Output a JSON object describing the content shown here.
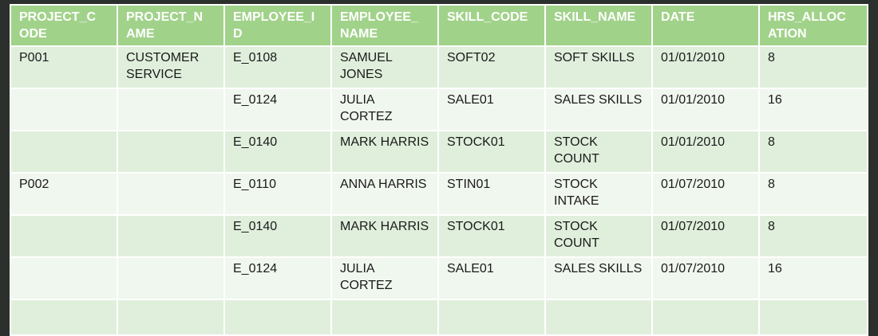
{
  "table": {
    "headers": [
      "PROJECT_C ODE",
      "PROJECT_N AME",
      "EMPLOYEE_I D",
      "EMPLOYEE_ NAME",
      "SKILL_CODE",
      "SKILL_NAME",
      "DATE",
      "HRS_ALLOC ATION"
    ],
    "rows": [
      [
        "P001",
        "CUSTOMER SERVICE",
        "E_0108",
        "SAMUEL JONES",
        "SOFT02",
        "SOFT SKILLS",
        "01/01/2010",
        "8"
      ],
      [
        "",
        "",
        "E_0124",
        "JULIA CORTEZ",
        "SALE01",
        "SALES SKILLS",
        "01/01/2010",
        "16"
      ],
      [
        "",
        "",
        "E_0140",
        "MARK HARRIS",
        "STOCK01",
        "STOCK COUNT",
        "01/01/2010",
        "8"
      ],
      [
        "P002",
        "",
        "E_0110",
        "ANNA HARRIS",
        "STIN01",
        "STOCK INTAKE",
        "01/07/2010",
        "8"
      ],
      [
        "",
        "",
        "E_0140",
        "MARK HARRIS",
        "STOCK01",
        "STOCK COUNT",
        "01/07/2010",
        "8"
      ],
      [
        "",
        "",
        "E_0124",
        "JULIA CORTEZ",
        "SALE01",
        "SALES SKILLS",
        "01/07/2010",
        "16"
      ],
      [
        "",
        "",
        "",
        "",
        "",
        "",
        "",
        ""
      ]
    ]
  },
  "colors": {
    "header_bg": "#a1d28a",
    "row_odd_bg": "#e0efdc",
    "row_even_bg": "#f0f7ee",
    "border": "#ffffff",
    "slide_bg": "#2b302d"
  }
}
